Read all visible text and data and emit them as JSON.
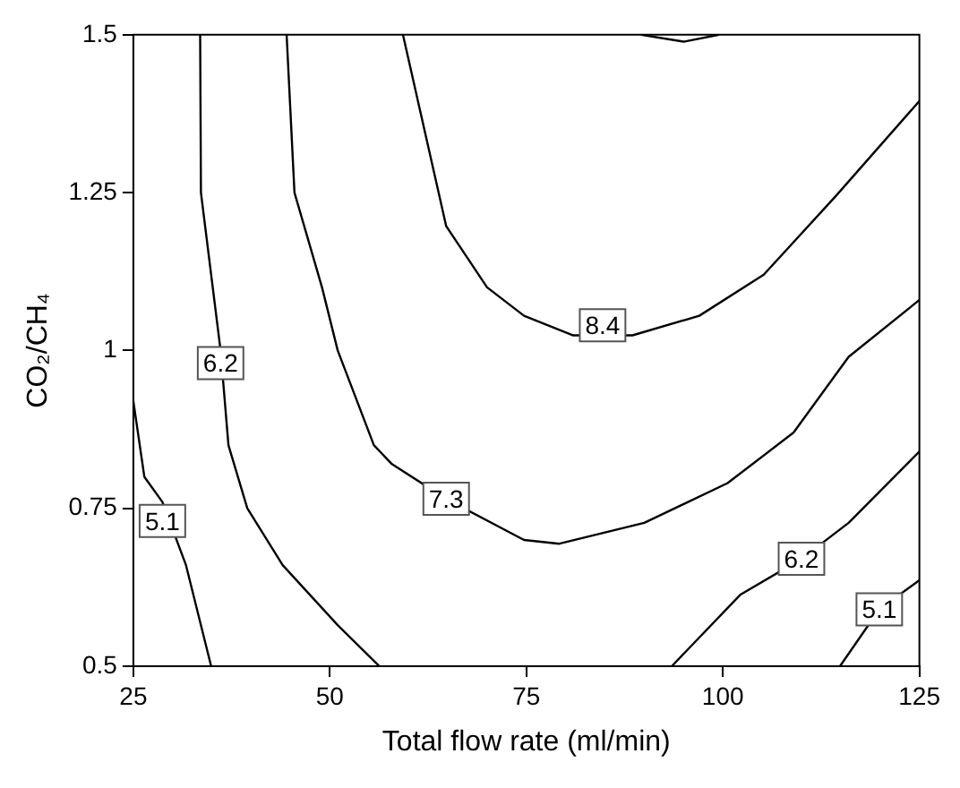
{
  "chart_data": {
    "type": "line",
    "xlabel": "Total flow rate (ml/min)",
    "ylabel": "CO₂/CH₄",
    "xlim": [
      25,
      125
    ],
    "ylim": [
      0.5,
      1.5
    ],
    "xticks": [
      25,
      50,
      75,
      100,
      125
    ],
    "yticks": [
      0.5,
      0.75,
      1,
      1.25,
      1.5
    ],
    "grid": false,
    "legend": false,
    "marker": "none",
    "line_style": "solid",
    "series": [
      {
        "color": "#000000",
        "x": [
          25,
          26.4,
          28.7,
          31.7,
          34.9
        ],
        "values": [
          0.92,
          0.8,
          0.76,
          0.66,
          0.5
        ]
      },
      {
        "color": "#000000",
        "x": [
          33.5,
          33.6,
          36.1,
          37.1,
          39.5,
          44,
          51,
          56.3
        ],
        "values": [
          1.5,
          1.25,
          1.0,
          0.85,
          0.75,
          0.66,
          0.565,
          0.5
        ]
      },
      {
        "color": "#000000",
        "x": [
          44.5,
          45.5,
          49,
          51,
          55.6,
          57.9,
          64.8,
          74.7,
          79.2,
          90,
          100.6,
          109,
          116,
          125
        ],
        "values": [
          1.5,
          1.25,
          1.1,
          1.0,
          0.85,
          0.82,
          0.765,
          0.7,
          0.694,
          0.727,
          0.79,
          0.87,
          0.99,
          1.08
        ]
      },
      {
        "color": "#000000",
        "x": [
          59.3,
          64.8,
          70,
          74.7,
          80.9,
          88.5,
          97,
          105.2,
          114.4,
          125
        ],
        "values": [
          1.5,
          1.197,
          1.1,
          1.055,
          1.024,
          1.024,
          1.055,
          1.12,
          1.245,
          1.395
        ]
      },
      {
        "color": "#000000",
        "x": [
          89.6,
          95,
          99.5
        ],
        "values": [
          1.5,
          1.489,
          1.5
        ]
      },
      {
        "color": "#000000",
        "x": [
          93.5,
          102.2,
          110,
          116,
          125
        ],
        "values": [
          0.5,
          0.613,
          0.67,
          0.727,
          0.84
        ]
      },
      {
        "color": "#000000",
        "x": [
          114.9,
          119.9,
          125
        ],
        "values": [
          0.5,
          0.59,
          0.636
        ]
      }
    ],
    "annotations": [
      {
        "text": "5.1",
        "x": 28.7,
        "y": 0.73
      },
      {
        "text": "6.2",
        "x": 36.1,
        "y": 0.98
      },
      {
        "text": "7.3",
        "x": 64.8,
        "y": 0.765
      },
      {
        "text": "8.4",
        "x": 84.7,
        "y": 1.04
      },
      {
        "text": "6.2",
        "x": 110,
        "y": 0.67
      },
      {
        "text": "5.1",
        "x": 119.9,
        "y": 0.59
      }
    ]
  }
}
